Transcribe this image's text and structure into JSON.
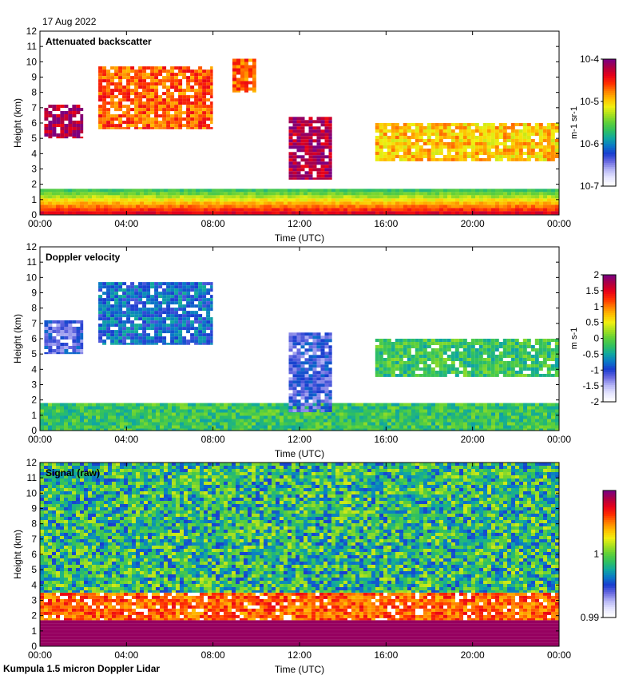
{
  "date": "17 Aug 2022",
  "footer": "Kumpula 1.5 micron Doppler Lidar",
  "colors": {
    "background": "#ffffff",
    "axis": "#000000",
    "colormap": [
      "#ffffff",
      "#e4e4ff",
      "#b4b4f4",
      "#6a6ae0",
      "#1a3cd0",
      "#0a78c8",
      "#10a8a0",
      "#30c060",
      "#5ed03a",
      "#a6e020",
      "#f0f010",
      "#ffc000",
      "#ff8000",
      "#ff3000",
      "#e80018",
      "#b00040",
      "#7e007e"
    ]
  },
  "chart_data": [
    {
      "type": "heatmap",
      "title": "Attenuated backscatter",
      "xlabel": "Time (UTC)",
      "ylabel": "Height (km)",
      "xlim": [
        0,
        24
      ],
      "ylim": [
        0,
        12
      ],
      "xticks": [
        "00:00",
        "04:00",
        "08:00",
        "12:00",
        "16:00",
        "20:00",
        "00:00"
      ],
      "yticks": [
        "0",
        "1",
        "2",
        "3",
        "4",
        "5",
        "6",
        "7",
        "8",
        "9",
        "10",
        "11",
        "12"
      ],
      "colorbar": {
        "label": "m-1 sr-1",
        "scale": "log",
        "range": [
          1e-07,
          0.0001
        ],
        "ticks": [
          {
            "value": 0.0001,
            "label": "10-4"
          },
          {
            "value": 1e-05,
            "label": "10-5"
          },
          {
            "value": 1e-06,
            "label": "10-6"
          },
          {
            "value": 1e-07,
            "label": "10-7"
          }
        ]
      },
      "features": [
        {
          "name": "boundary-layer",
          "from_h": 0,
          "to_h": 24,
          "base_km": 0,
          "top_km": 1.7,
          "level": "high-near-surface"
        },
        {
          "name": "cloud-early",
          "from_h": 0.2,
          "to_h": 2.0,
          "base_km": 5.0,
          "top_km": 7.2,
          "level": "very-high"
        },
        {
          "name": "cloud-morning",
          "from_h": 2.7,
          "to_h": 8.0,
          "base_km": 5.6,
          "top_km": 9.7,
          "level": "high"
        },
        {
          "name": "cloud-9utc",
          "from_h": 8.9,
          "to_h": 10.0,
          "base_km": 8.0,
          "top_km": 10.2,
          "level": "high"
        },
        {
          "name": "cloud-midday",
          "from_h": 11.5,
          "to_h": 13.5,
          "base_km": 2.3,
          "top_km": 6.4,
          "level": "very-high"
        },
        {
          "name": "cloud-afternoon",
          "from_h": 15.5,
          "to_h": 24,
          "base_km": 3.5,
          "top_km": 6.0,
          "level": "medium"
        }
      ]
    },
    {
      "type": "heatmap",
      "title": "Doppler velocity",
      "xlabel": "Time (UTC)",
      "ylabel": "Height (km)",
      "xlim": [
        0,
        24
      ],
      "ylim": [
        0,
        12
      ],
      "xticks": [
        "00:00",
        "04:00",
        "08:00",
        "12:00",
        "16:00",
        "20:00",
        "00:00"
      ],
      "yticks": [
        "0",
        "1",
        "2",
        "3",
        "4",
        "5",
        "6",
        "7",
        "8",
        "9",
        "10",
        "11",
        "12"
      ],
      "colorbar": {
        "label": "m s-1",
        "scale": "linear",
        "range": [
          -2,
          2
        ],
        "ticks": [
          {
            "value": 2,
            "label": "2"
          },
          {
            "value": 1.5,
            "label": "1.5"
          },
          {
            "value": 1,
            "label": "1"
          },
          {
            "value": 0.5,
            "label": "0.5"
          },
          {
            "value": 0,
            "label": "0"
          },
          {
            "value": -0.5,
            "label": "-0.5"
          },
          {
            "value": -1,
            "label": "-1"
          },
          {
            "value": -1.5,
            "label": "-1.5"
          },
          {
            "value": -2,
            "label": "-2"
          }
        ]
      },
      "features": [
        {
          "name": "boundary-layer",
          "from_h": 0,
          "to_h": 24,
          "base_km": 0,
          "top_km": 1.8,
          "level": "near-zero"
        },
        {
          "name": "cloud-early",
          "from_h": 0.2,
          "to_h": 2.0,
          "base_km": 5.0,
          "top_km": 7.2,
          "level": "downward"
        },
        {
          "name": "cloud-morning",
          "from_h": 2.7,
          "to_h": 8.0,
          "base_km": 5.6,
          "top_km": 9.7,
          "level": "slightly-downward"
        },
        {
          "name": "cloud-midday",
          "from_h": 11.5,
          "to_h": 13.5,
          "base_km": 1.2,
          "top_km": 6.4,
          "level": "downward"
        },
        {
          "name": "cloud-afternoon",
          "from_h": 15.5,
          "to_h": 24,
          "base_km": 3.5,
          "top_km": 6.0,
          "level": "near-zero"
        }
      ]
    },
    {
      "type": "heatmap",
      "title": "Signal (raw)",
      "xlabel": "Time (UTC)",
      "ylabel": "Height (km)",
      "xlim": [
        0,
        24
      ],
      "ylim": [
        0,
        12
      ],
      "xticks": [
        "00:00",
        "04:00",
        "08:00",
        "12:00",
        "16:00",
        "20:00",
        "00:00"
      ],
      "yticks": [
        "0",
        "1",
        "2",
        "3",
        "4",
        "5",
        "6",
        "7",
        "8",
        "9",
        "10",
        "11",
        "12"
      ],
      "colorbar": {
        "label": "",
        "scale": "linear",
        "range": [
          0.99,
          1.01
        ],
        "ticks": [
          {
            "value": 1,
            "label": "1"
          },
          {
            "value": 0.99,
            "label": "0.99"
          }
        ]
      },
      "features": [
        {
          "name": "saturated-near-surface",
          "from_h": 0,
          "to_h": 24,
          "base_km": 0,
          "top_km": 1.7,
          "level": "max"
        },
        {
          "name": "aerosol-layer",
          "from_h": 0,
          "to_h": 24,
          "base_km": 1.7,
          "top_km": 3.5,
          "level": "high"
        },
        {
          "name": "cloud-early",
          "from_h": 0.2,
          "to_h": 2.0,
          "base_km": 5.0,
          "top_km": 7.2,
          "level": "max"
        },
        {
          "name": "cloud-morning",
          "from_h": 3.5,
          "to_h": 7.0,
          "base_km": 5.6,
          "top_km": 7.0,
          "level": "max"
        },
        {
          "name": "noise-background",
          "from_h": 0,
          "to_h": 24,
          "base_km": 3.5,
          "top_km": 12,
          "level": "noise"
        }
      ]
    }
  ]
}
